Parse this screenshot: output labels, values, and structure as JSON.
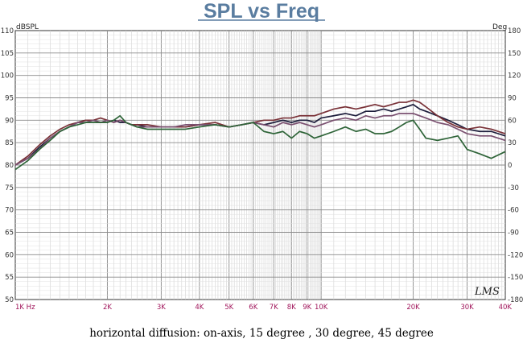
{
  "chart_data": {
    "type": "line",
    "title": "SPL vs Freq",
    "left_unit": "dBSPL",
    "right_unit": "Deg",
    "caption": "horizontal diffusion: on-axis, 15 degree , 30 degree, 45 degree",
    "watermark": "LMS",
    "x_scale": "log",
    "xlim": [
      1000,
      40000
    ],
    "ylim": [
      50,
      110
    ],
    "ylim_right": [
      -180,
      180
    ],
    "grid": true,
    "x_ticks": [
      {
        "value": 1000,
        "label": "1K Hz"
      },
      {
        "value": 2000,
        "label": "2K"
      },
      {
        "value": 3000,
        "label": "3K"
      },
      {
        "value": 4000,
        "label": "4K"
      },
      {
        "value": 5000,
        "label": "5K"
      },
      {
        "value": 6000,
        "label": "6K"
      },
      {
        "value": 7000,
        "label": "7K"
      },
      {
        "value": 8000,
        "label": "8K"
      },
      {
        "value": 9000,
        "label": "9K"
      },
      {
        "value": 10000,
        "label": "10K"
      },
      {
        "value": 20000,
        "label": "20K"
      },
      {
        "value": 30000,
        "label": "30K"
      },
      {
        "value": 40000,
        "label": "40K"
      }
    ],
    "y_ticks": [
      {
        "value": 110,
        "label": "110"
      },
      {
        "value": 105,
        "label": "105"
      },
      {
        "value": 100,
        "label": "100"
      },
      {
        "value": 95,
        "label": "95"
      },
      {
        "value": 90,
        "label": "90"
      },
      {
        "value": 85,
        "label": "85"
      },
      {
        "value": 80,
        "label": "80"
      },
      {
        "value": 75,
        "label": "75"
      },
      {
        "value": 70,
        "label": "70"
      },
      {
        "value": 65,
        "label": "65"
      },
      {
        "value": 60,
        "label": "60"
      },
      {
        "value": 55,
        "label": "55"
      },
      {
        "value": 50,
        "label": "50"
      }
    ],
    "y_ticks_right": [
      {
        "value": 180,
        "label": "180"
      },
      {
        "value": 150,
        "label": "150"
      },
      {
        "value": 120,
        "label": "120"
      },
      {
        "value": 90,
        "label": "90"
      },
      {
        "value": 60,
        "label": "60"
      },
      {
        "value": 30,
        "label": "30"
      },
      {
        "value": 0,
        "label": "0"
      },
      {
        "value": -30,
        "label": "-30"
      },
      {
        "value": -60,
        "label": "-60"
      },
      {
        "value": -90,
        "label": "-90"
      },
      {
        "value": -120,
        "label": "-120"
      },
      {
        "value": -150,
        "label": "-150"
      },
      {
        "value": -180,
        "label": "-180"
      }
    ],
    "x": [
      1000,
      1100,
      1200,
      1300,
      1400,
      1500,
      1600,
      1700,
      1800,
      1900,
      2000,
      2100,
      2200,
      2300,
      2400,
      2500,
      2700,
      3000,
      3300,
      3600,
      4000,
      4500,
      5000,
      5500,
      6000,
      6500,
      7000,
      7500,
      8000,
      8500,
      9000,
      9500,
      10000,
      11000,
      12000,
      13000,
      14000,
      15000,
      16000,
      17000,
      18000,
      19000,
      20000,
      21000,
      22000,
      24000,
      26000,
      28000,
      30000,
      33000,
      36000,
      40000
    ],
    "series": [
      {
        "color": "#1e1e3c",
        "values": [
          80,
          81.5,
          84,
          86,
          87.5,
          88.5,
          89.5,
          90,
          90,
          89.5,
          89.5,
          90,
          89.5,
          89.5,
          89,
          89,
          88.5,
          88.5,
          88.5,
          88.5,
          89,
          89,
          88.5,
          89,
          89.5,
          89,
          89.5,
          90,
          89.5,
          90,
          90,
          89.5,
          90.5,
          91,
          91.5,
          91,
          92,
          92,
          92.5,
          92,
          92.5,
          93,
          93.5,
          92.5,
          92,
          91,
          90,
          89,
          88,
          87.5,
          87.5,
          86.5
        ]
      },
      {
        "color": "#7a3238",
        "values": [
          80,
          82,
          84.5,
          86.5,
          88,
          89,
          89.5,
          90,
          90,
          90.5,
          90,
          89.5,
          90,
          89.5,
          89,
          89,
          89,
          88.5,
          88.5,
          88.5,
          89,
          89.5,
          88.5,
          89,
          89.5,
          90,
          90,
          90.5,
          90.5,
          91,
          91,
          91,
          91.5,
          92.5,
          93,
          92.5,
          93,
          93.5,
          93,
          93.5,
          94,
          94,
          94.5,
          94,
          93,
          91,
          89.5,
          88.5,
          88,
          88.5,
          88,
          87
        ]
      },
      {
        "color": "#7a5070",
        "values": [
          80,
          81.5,
          83.5,
          86,
          87.5,
          88.5,
          89.5,
          89.5,
          90,
          89.5,
          90,
          89.5,
          90,
          89.5,
          89,
          88.5,
          88.5,
          88.5,
          88.5,
          89,
          89,
          89,
          88.5,
          89,
          89.5,
          89,
          88.5,
          89.5,
          89,
          89.5,
          89,
          88.5,
          89,
          90,
          90.5,
          90,
          91,
          90.5,
          91,
          91,
          91.5,
          91.5,
          91.5,
          91,
          90.5,
          89.5,
          89,
          88,
          87,
          86.5,
          86.5,
          85.5
        ]
      },
      {
        "color": "#2e6438",
        "values": [
          79,
          81,
          83.5,
          85.5,
          87.5,
          88.5,
          89,
          89.5,
          89.5,
          89.5,
          89.5,
          90,
          91,
          89.5,
          89,
          88.5,
          88,
          88,
          88,
          88,
          88.5,
          89,
          88.5,
          89,
          89.5,
          87.5,
          87,
          87.5,
          86,
          87.5,
          87,
          86,
          86.5,
          87.5,
          88.5,
          87.5,
          88,
          87,
          87,
          87.5,
          88.5,
          89.5,
          90,
          88,
          86,
          85.5,
          86,
          86.5,
          83.5,
          82.5,
          81.5,
          83
        ]
      }
    ]
  }
}
